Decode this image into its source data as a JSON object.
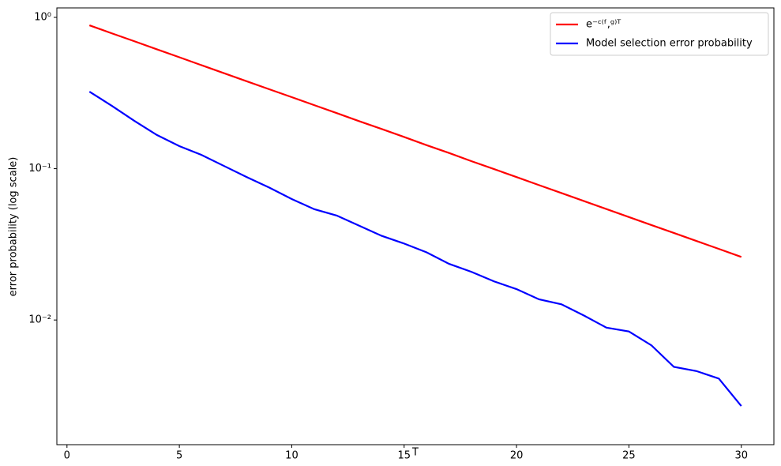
{
  "chart_data": {
    "type": "line",
    "xlabel": "T",
    "ylabel": "error probability (log scale)",
    "x": [
      1,
      2,
      3,
      4,
      5,
      6,
      7,
      8,
      9,
      10,
      11,
      12,
      13,
      14,
      15,
      16,
      17,
      18,
      19,
      20,
      21,
      22,
      23,
      24,
      25,
      26,
      27,
      28,
      29,
      30
    ],
    "series": [
      {
        "name": "e⁻ᶜ⁽ᶠ,ᵍ⁾ᵀ",
        "color": "#ff0000",
        "values": [
          0.886,
          0.784,
          0.695,
          0.615,
          0.545,
          0.482,
          0.427,
          0.378,
          0.335,
          0.297,
          0.263,
          0.233,
          0.206,
          0.183,
          0.162,
          0.143,
          0.127,
          0.112,
          0.0994,
          0.088,
          0.0779,
          0.069,
          0.0611,
          0.0541,
          0.0479,
          0.0424,
          0.0376,
          0.0333,
          0.0295,
          0.0261
        ]
      },
      {
        "name": "Model selection error probability",
        "color": "#0000ff",
        "values": [
          0.323,
          0.26,
          0.207,
          0.167,
          0.141,
          0.123,
          0.104,
          0.088,
          0.075,
          0.063,
          0.054,
          0.049,
          0.042,
          0.036,
          0.032,
          0.028,
          0.0235,
          0.0208,
          0.018,
          0.016,
          0.0137,
          0.0127,
          0.0107,
          0.0089,
          0.0084,
          0.0068,
          0.0049,
          0.0046,
          0.0041,
          0.0027
        ]
      }
    ],
    "xlim": [
      -0.45,
      31.45
    ],
    "xticks": [
      0,
      5,
      10,
      15,
      20,
      25,
      30
    ],
    "ylim": [
      0.0015,
      1.155
    ],
    "yticks": [
      {
        "value": 1,
        "label": "10⁰"
      },
      {
        "value": 0.1,
        "label": "10⁻¹"
      },
      {
        "value": 0.01,
        "label": "10⁻²"
      }
    ],
    "ylog": true,
    "legend": "upper right"
  }
}
